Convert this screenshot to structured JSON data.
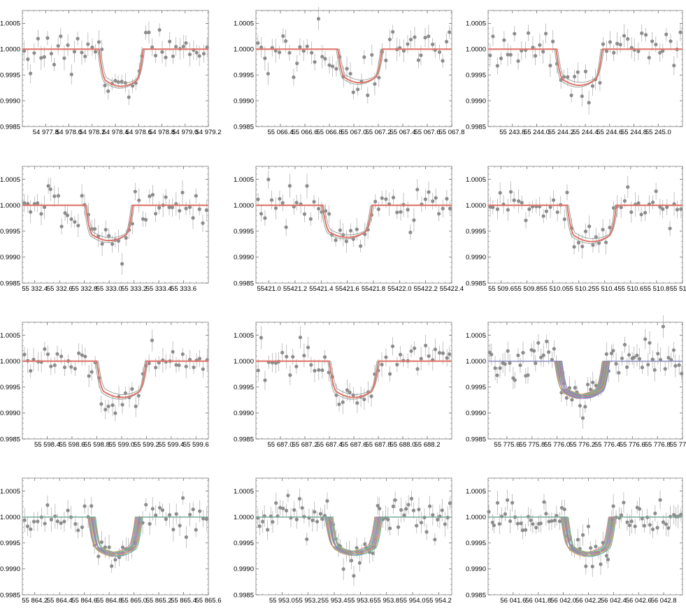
{
  "chart_data": [
    {
      "type": "line",
      "x_ticks": [
        "54 977.8",
        "54 978.0",
        "54 978.2",
        "54 978.4",
        "54 978.6",
        "54 978.8",
        "54 979.0",
        "54 979.2"
      ],
      "xlim": [
        54977.6,
        54979.2
      ],
      "ylim": [
        0.9985,
        1.00075
      ],
      "y_ticks": [
        "0.9985",
        "0.9990",
        "0.9995",
        "1.0000",
        "1.0005"
      ],
      "transit": {
        "center": 54978.45,
        "half_width": 0.19,
        "depth": 0.00072
      },
      "n_models": 3,
      "n_points": 55
    },
    {
      "type": "line",
      "x_ticks": [
        "55 066.4",
        "55 066.6",
        "55 066.8",
        "55 067.0",
        "55 067.2",
        "55 067.4",
        "55 067.6",
        "55 067.8"
      ],
      "xlim": [
        55066.2,
        55067.8
      ],
      "ylim": [
        0.9985,
        1.00075
      ],
      "y_ticks": [
        "0.9985",
        "0.9990",
        "0.9995",
        "1.0000",
        "1.0005"
      ],
      "transit": {
        "center": 55067.05,
        "half_width": 0.18,
        "depth": 0.00065
      },
      "n_models": 3,
      "n_points": 55
    },
    {
      "type": "line",
      "x_ticks": [
        "55 243.8",
        "55 244.0",
        "55 244.2",
        "55 244.4",
        "55 244.6",
        "55 244.8",
        "55 245.0"
      ],
      "xlim": [
        55243.6,
        55245.2
      ],
      "ylim": [
        0.9985,
        1.00075
      ],
      "y_ticks": [
        "0.9985",
        "0.9990",
        "0.9995",
        "1.0000",
        "1.0005"
      ],
      "transit": {
        "center": 55244.35,
        "half_width": 0.19,
        "depth": 0.0007
      },
      "n_models": 3,
      "n_points": 55
    },
    {
      "type": "line",
      "x_ticks": [
        "55 332.4",
        "55 332.6",
        "55 332.8",
        "55 333.0",
        "55 333.2",
        "55 333.4",
        "55 333.6"
      ],
      "xlim": [
        55332.3,
        55333.8
      ],
      "ylim": [
        0.9985,
        1.00075
      ],
      "y_ticks": [
        "0.9985",
        "0.9990",
        "0.9995",
        "1.0000",
        "1.0005"
      ],
      "transit": {
        "center": 55333.0,
        "half_width": 0.19,
        "depth": 0.00068
      },
      "n_models": 3,
      "n_points": 55
    },
    {
      "type": "line",
      "x_ticks": [
        "55421.0",
        "55421.2",
        "55421.4",
        "55421.6",
        "55421.8",
        "55422.0",
        "55422.2",
        "55422.4"
      ],
      "xlim": [
        55420.9,
        55422.4
      ],
      "ylim": [
        0.9985,
        1.00075
      ],
      "y_ticks": [
        "0.9985",
        "0.9990",
        "0.9995",
        "1.0000",
        "1.0005"
      ],
      "transit": {
        "center": 55421.6,
        "half_width": 0.19,
        "depth": 0.00062
      },
      "n_models": 3,
      "n_points": 55
    },
    {
      "type": "line",
      "x_ticks": [
        "55 509.6",
        "55 509.8",
        "55 510.0",
        "55 510.2",
        "55 510.4",
        "55 510.6",
        "55 510.8",
        "55 511.0"
      ],
      "xlim": [
        55509.5,
        55511.0
      ],
      "ylim": [
        0.9985,
        1.00075
      ],
      "y_ticks": [
        "0.9985",
        "0.9990",
        "0.9995",
        "1.0000",
        "1.0005"
      ],
      "transit": {
        "center": 55510.3,
        "half_width": 0.19,
        "depth": 0.0007
      },
      "n_models": 3,
      "n_points": 55
    },
    {
      "type": "line",
      "x_ticks": [
        "55 598.4",
        "55 598.6",
        "55 598.8",
        "55 599.0",
        "55 599.2",
        "55 599.4",
        "55 599.6"
      ],
      "xlim": [
        55598.2,
        55599.7
      ],
      "ylim": [
        0.9985,
        1.00075
      ],
      "y_ticks": [
        "0.9985",
        "0.9990",
        "0.9995",
        "1.0000",
        "1.0005"
      ],
      "transit": {
        "center": 55599.0,
        "half_width": 0.2,
        "depth": 0.0007
      },
      "n_models": 3,
      "n_points": 55
    },
    {
      "type": "line",
      "x_ticks": [
        "55 687.0",
        "55 687.2",
        "55 687.4",
        "55 687.6",
        "55 687.8",
        "55 688.0",
        "55 688.2"
      ],
      "xlim": [
        55686.8,
        55688.4
      ],
      "ylim": [
        0.9985,
        1.00075
      ],
      "y_ticks": [
        "0.9985",
        "0.9990",
        "0.9995",
        "1.0000",
        "1.0005"
      ],
      "transit": {
        "center": 55687.6,
        "half_width": 0.2,
        "depth": 0.0007
      },
      "n_models": 3,
      "n_points": 55
    },
    {
      "type": "line",
      "x_ticks": [
        "55 775.6",
        "55 775.8",
        "55 776.0",
        "55 776.2",
        "55 776.4",
        "55 776.6",
        "55 776.8",
        "55 777.0"
      ],
      "xlim": [
        55775.45,
        55777.0
      ],
      "ylim": [
        0.9985,
        1.00075
      ],
      "y_ticks": [
        "0.9985",
        "0.9990",
        "0.9995",
        "1.0000",
        "1.0005"
      ],
      "transit": {
        "center": 55776.2,
        "half_width": 0.19,
        "depth": 0.00068
      },
      "n_models": 24,
      "n_points": 75
    },
    {
      "type": "line",
      "x_ticks": [
        "55 864.2",
        "55 864.4",
        "55 864.6",
        "55 864.8",
        "55 865.0",
        "55 865.2",
        "55 865.4",
        "55 865.6"
      ],
      "xlim": [
        55864.1,
        55865.6
      ],
      "ylim": [
        0.9985,
        1.00075
      ],
      "y_ticks": [
        "0.9985",
        "0.9990",
        "0.9995",
        "1.0000",
        "1.0005"
      ],
      "transit": {
        "center": 55864.85,
        "half_width": 0.19,
        "depth": 0.00072
      },
      "n_models": 14,
      "n_points": 55
    },
    {
      "type": "line",
      "x_ticks": [
        "55 953.0",
        "55 953.2",
        "55 953.4",
        "55 953.6",
        "55 953.8",
        "55 954.0",
        "55 954.2"
      ],
      "xlim": [
        55952.8,
        55954.3
      ],
      "ylim": [
        0.9985,
        1.00075
      ],
      "y_ticks": [
        "0.9985",
        "0.9990",
        "0.9995",
        "1.0000",
        "1.0005"
      ],
      "transit": {
        "center": 55953.55,
        "half_width": 0.19,
        "depth": 0.0007
      },
      "n_models": 14,
      "n_points": 75
    },
    {
      "type": "line",
      "x_ticks": [
        "56 041.6",
        "56 041.8",
        "56 042.0",
        "56 042.2",
        "56 042.4",
        "56 042.6",
        "56 042.8"
      ],
      "xlim": [
        56041.4,
        56042.95
      ],
      "ylim": [
        0.9985,
        1.00075
      ],
      "y_ticks": [
        "0.9985",
        "0.9990",
        "0.9995",
        "1.0000",
        "1.0005"
      ],
      "transit": {
        "center": 56042.2,
        "half_width": 0.19,
        "depth": 0.00072
      },
      "n_models": 14,
      "n_points": 75
    }
  ],
  "colors": {
    "data_point": "#8c8c8c",
    "error_bar": "#b4b4b4",
    "model_main": "#e0736a",
    "model_alt": "#9aa39a",
    "model_palette": [
      "#e0736a",
      "#6a9fc8",
      "#8bbf5a",
      "#a07ac8",
      "#d6a94a",
      "#5ab5a8",
      "#c86a9f",
      "#7a8bd6"
    ],
    "frame": "#7a7a7a"
  }
}
